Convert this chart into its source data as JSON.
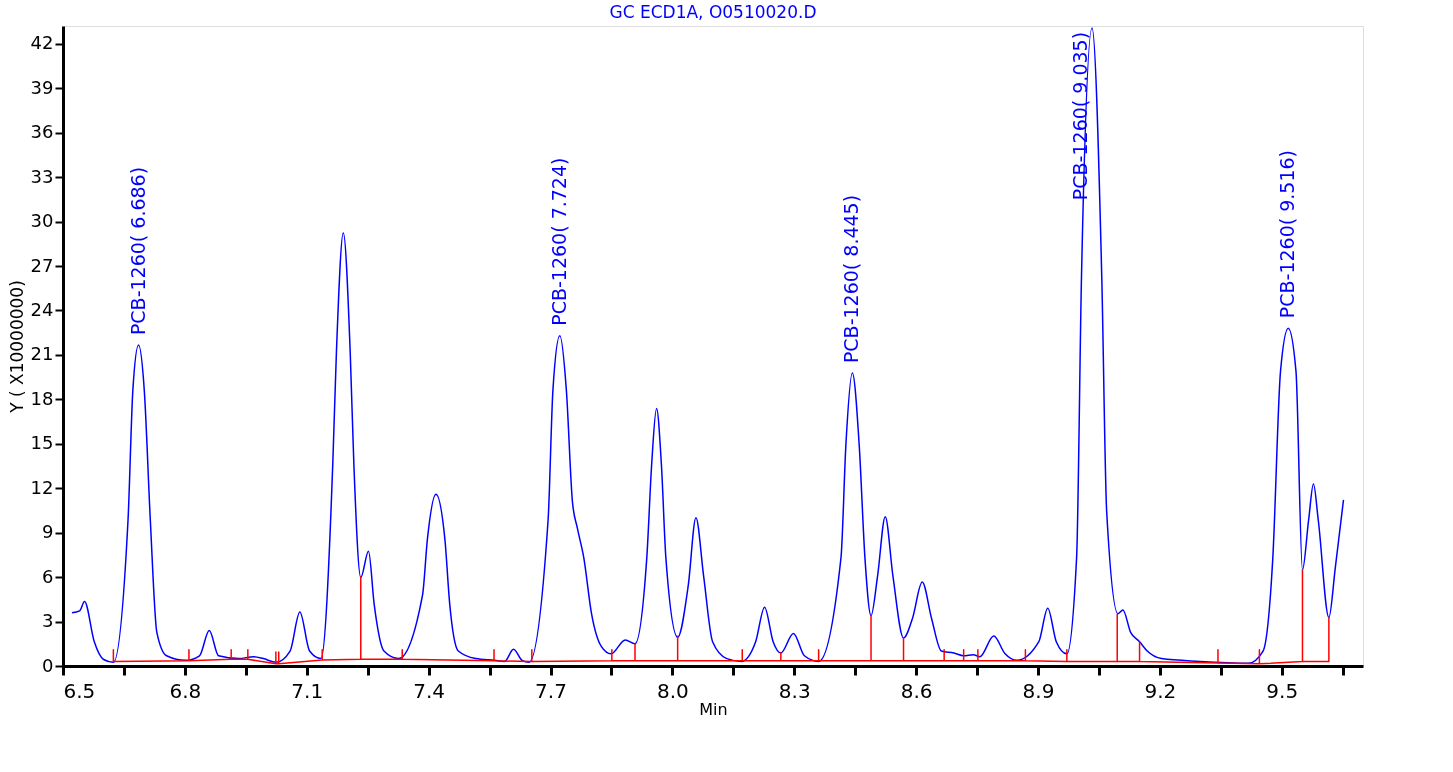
{
  "chart_data": {
    "type": "line",
    "title": "GC ECD1A, O0510020.D",
    "xlabel": "Min",
    "ylabel": "Y ( X10000000)",
    "xlim": [
      6.5,
      9.7
    ],
    "ylim": [
      0,
      43.2
    ],
    "xticks": [
      6.5,
      {
        "value": 6.65,
        "label": null
      },
      6.8,
      {
        "value": 6.95,
        "label": null
      },
      7.1,
      {
        "value": 7.25,
        "label": null
      },
      7.4,
      {
        "value": 7.55,
        "label": null
      },
      7.7,
      {
        "value": 7.85,
        "label": null
      },
      {
        "value": 8.0,
        "label": "8.0"
      },
      {
        "value": 8.15,
        "label": null
      },
      8.3,
      {
        "value": 8.45,
        "label": null
      },
      8.6,
      {
        "value": 8.75,
        "label": null
      },
      8.9,
      {
        "value": 9.05,
        "label": null
      },
      9.2,
      {
        "value": 9.35,
        "label": null
      },
      9.5,
      {
        "value": 9.65,
        "label": null
      }
    ],
    "yticks": [
      0,
      3,
      6,
      9,
      12,
      15,
      18,
      21,
      24,
      27,
      30,
      33,
      36,
      39,
      42
    ],
    "grid": false,
    "legend": false,
    "series": [
      {
        "color": "#0000ff",
        "x": [
          6.522,
          6.541,
          6.553,
          6.577,
          6.6,
          6.624,
          6.66,
          6.672,
          6.686,
          6.7,
          6.715,
          6.731,
          6.755,
          6.802,
          6.836,
          6.86,
          6.883,
          6.933,
          6.969,
          6.993,
          7.024,
          7.059,
          7.083,
          7.107,
          7.135,
          7.164,
          7.173,
          7.19,
          7.207,
          7.216,
          7.233,
          7.252,
          7.266,
          7.29,
          7.326,
          7.385,
          7.397,
          7.418,
          7.44,
          7.452,
          7.473,
          7.516,
          7.563,
          7.587,
          7.609,
          7.63,
          7.647,
          7.694,
          7.706,
          7.723,
          7.739,
          7.754,
          7.766,
          7.782,
          7.801,
          7.825,
          7.849,
          7.884,
          7.908,
          7.937,
          7.949,
          7.961,
          7.973,
          7.984,
          8.013,
          8.039,
          8.058,
          8.077,
          8.099,
          8.134,
          8.17,
          8.205,
          8.227,
          8.248,
          8.267,
          8.298,
          8.325,
          8.36,
          8.415,
          8.427,
          8.443,
          8.46,
          8.474,
          8.489,
          8.505,
          8.524,
          8.543,
          8.569,
          8.591,
          8.615,
          8.638,
          8.662,
          8.693,
          8.717,
          8.741,
          8.757,
          8.791,
          8.819,
          8.848,
          8.902,
          8.924,
          8.945,
          8.971,
          8.995,
          9.007,
          9.033,
          9.057,
          9.069,
          9.097,
          9.109,
          9.128,
          9.15,
          9.169,
          9.204,
          9.299,
          9.418,
          9.454,
          9.478,
          9.497,
          9.516,
          9.535,
          9.551,
          9.566,
          9.578,
          9.59,
          9.616,
          9.632,
          9.652
        ],
        "values": [
          3.59,
          3.72,
          4.35,
          1.64,
          0.44,
          0.25,
          9.82,
          18.64,
          21.66,
          18.64,
          9.82,
          2.27,
          0.69,
          0.38,
          0.69,
          2.39,
          0.69,
          0.5,
          0.63,
          0.5,
          0.25,
          1.01,
          3.65,
          1.01,
          0.5,
          13.6,
          21.16,
          29.22,
          21.16,
          13.6,
          5.98,
          7.75,
          4.16,
          1.01,
          0.5,
          4.79,
          8.56,
          11.59,
          8.56,
          4.16,
          1.01,
          0.5,
          0.38,
          0.31,
          1.13,
          0.38,
          0.25,
          9.82,
          18.64,
          22.29,
          18.64,
          11.08,
          9.32,
          7.3,
          3.53,
          1.32,
          0.82,
          1.76,
          1.51,
          7.3,
          13.6,
          17.38,
          13.6,
          7.3,
          1.95,
          5.42,
          10.01,
          6.05,
          1.64,
          0.5,
          0.31,
          1.64,
          3.97,
          1.64,
          0.88,
          2.2,
          0.69,
          0.31,
          7.3,
          14.86,
          19.77,
          14.86,
          7.3,
          3.4,
          6.05,
          10.08,
          6.05,
          1.89,
          3.21,
          5.67,
          3.21,
          1.01,
          0.88,
          0.69,
          0.76,
          0.63,
          2.02,
          0.82,
          0.38,
          1.64,
          3.9,
          1.64,
          0.82,
          7.3,
          26.2,
          43.07,
          26.2,
          10.45,
          3.53,
          3.78,
          2.27,
          1.64,
          1.01,
          0.5,
          0.31,
          0.19,
          1.01,
          7.3,
          19.9,
          22.8,
          19.9,
          6.49,
          9.82,
          12.28,
          9.82,
          3.27,
          6.68,
          11.21
        ]
      },
      {
        "color": "#ff0000",
        "x": [
          6.624,
          6.624,
          6.624,
          6.81,
          6.81,
          6.81,
          6.914,
          6.914,
          6.914,
          6.955,
          6.955,
          6.955,
          7.024,
          7.024,
          7.024,
          7.031,
          7.031,
          7.031,
          7.138,
          7.138,
          7.138,
          7.233,
          7.233,
          7.233,
          7.335,
          7.335,
          7.335,
          7.561,
          7.561,
          7.561,
          7.654,
          7.654,
          7.654,
          7.851,
          7.851,
          7.851,
          7.908,
          7.908,
          7.908,
          8.013,
          8.013,
          8.013,
          8.172,
          8.172,
          8.172,
          8.267,
          8.267,
          8.267,
          8.36,
          8.36,
          8.36,
          8.489,
          8.489,
          8.489,
          8.569,
          8.569,
          8.569,
          8.669,
          8.669,
          8.669,
          8.717,
          8.717,
          8.717,
          8.752,
          8.752,
          8.752,
          8.869,
          8.869,
          8.869,
          8.971,
          8.971,
          8.971,
          9.095,
          9.095,
          9.095,
          9.15,
          9.15,
          9.15,
          9.343,
          9.343,
          9.343,
          9.445,
          9.445,
          9.445,
          9.551,
          9.551,
          9.551,
          9.616,
          9.616
        ],
        "values": [
          0.3,
          1.1,
          0.3,
          0.35,
          1.1,
          0.35,
          0.45,
          1.1,
          0.45,
          0.45,
          1.1,
          0.45,
          0.15,
          0.95,
          0.15,
          0.15,
          0.95,
          0.15,
          0.4,
          1.1,
          0.4,
          0.45,
          6.0,
          0.45,
          0.45,
          1.1,
          0.45,
          0.35,
          1.1,
          0.35,
          0.3,
          1.1,
          0.3,
          0.35,
          1.1,
          0.35,
          0.35,
          1.5,
          0.35,
          0.35,
          2.0,
          0.35,
          0.35,
          1.1,
          0.35,
          0.35,
          0.9,
          0.35,
          0.35,
          1.1,
          0.35,
          0.35,
          3.4,
          0.35,
          0.35,
          1.9,
          0.35,
          0.35,
          1.1,
          0.35,
          0.35,
          1.1,
          0.35,
          0.35,
          1.1,
          0.35,
          0.35,
          1.1,
          0.35,
          0.3,
          1.1,
          0.3,
          0.3,
          3.5,
          0.3,
          0.3,
          1.6,
          0.3,
          0.2,
          1.1,
          0.2,
          0.15,
          1.1,
          0.15,
          0.3,
          6.5,
          0.3,
          0.3,
          3.3
        ]
      }
    ],
    "annotations": [
      {
        "text": "PCB-1260( 6.686)",
        "x": 6.686,
        "y": 21.66
      },
      {
        "text": "PCB-1260( 7.724)",
        "x": 7.723,
        "y": 22.29
      },
      {
        "text": "PCB-1260( 8.445)",
        "x": 8.443,
        "y": 19.77
      },
      {
        "text": "PCB-1260( 9.035)",
        "x": 9.033,
        "y": 43.07
      },
      {
        "text": "PCB-1260( 9.516)",
        "x": 9.516,
        "y": 22.8
      }
    ]
  }
}
